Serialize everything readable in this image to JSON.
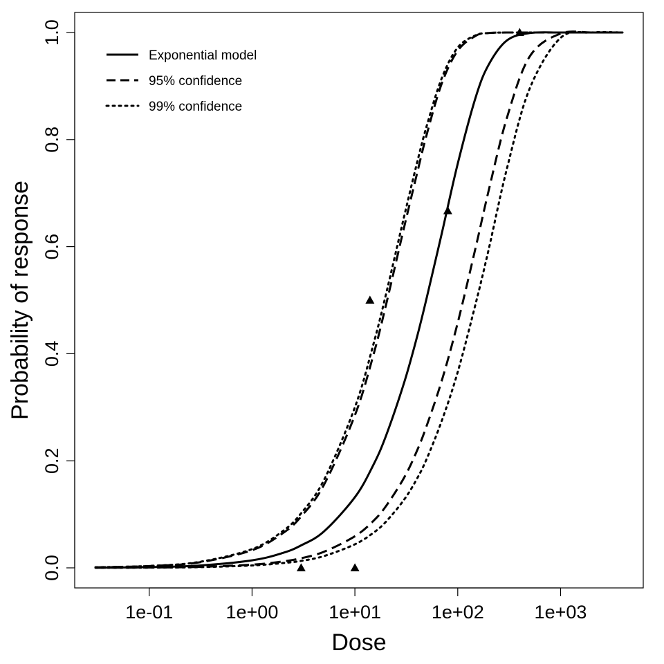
{
  "chart_data": {
    "type": "line",
    "title": "",
    "xlabel": "Dose",
    "ylabel": "Probability of response",
    "x_scale": "log",
    "xlim": [
      0.03,
      4000
    ],
    "ylim": [
      0,
      1
    ],
    "grid": false,
    "legend_position": "top-left",
    "x_ticks": [
      {
        "value": 0.1,
        "label": "1e-01"
      },
      {
        "value": 1,
        "label": "1e+00"
      },
      {
        "value": 10,
        "label": "1e+01"
      },
      {
        "value": 100,
        "label": "1e+02"
      },
      {
        "value": 1000,
        "label": "1e+03"
      }
    ],
    "y_ticks": [
      {
        "value": 0.0,
        "label": "0.0"
      },
      {
        "value": 0.2,
        "label": "0.2"
      },
      {
        "value": 0.4,
        "label": "0.4"
      },
      {
        "value": 0.6,
        "label": "0.6"
      },
      {
        "value": 0.8,
        "label": "0.8"
      },
      {
        "value": 1.0,
        "label": "1.0"
      }
    ],
    "series": [
      {
        "name": "Exponential model",
        "style": "solid",
        "x": [
          0.03,
          0.1,
          0.3,
          1,
          2,
          3,
          5,
          10,
          15,
          20,
          30,
          40,
          50,
          70,
          100,
          150,
          200,
          300,
          500,
          1000,
          2000,
          4000
        ],
        "y": [
          0.0004,
          0.0014,
          0.0042,
          0.014,
          0.028,
          0.042,
          0.068,
          0.132,
          0.191,
          0.246,
          0.345,
          0.43,
          0.505,
          0.625,
          0.755,
          0.88,
          0.94,
          0.985,
          0.999,
          1.0,
          1.0,
          1.0
        ]
      },
      {
        "name": "95% confidence",
        "style": "dashed",
        "x": [
          0.03,
          0.1,
          0.3,
          1,
          2,
          3,
          5,
          10,
          15,
          20,
          30,
          40,
          50,
          70,
          100,
          150,
          200,
          300,
          500,
          1000,
          2000,
          4000
        ],
        "y": [
          0.001,
          0.0034,
          0.01,
          0.033,
          0.065,
          0.096,
          0.155,
          0.285,
          0.395,
          0.49,
          0.635,
          0.735,
          0.81,
          0.905,
          0.966,
          0.994,
          0.999,
          1.0,
          1.0,
          1.0,
          1.0,
          1.0
        ]
      },
      {
        "name": "95% confidence",
        "style": "dashed",
        "x": [
          0.03,
          0.1,
          0.3,
          1,
          2,
          3,
          5,
          10,
          15,
          20,
          30,
          40,
          50,
          70,
          100,
          150,
          200,
          300,
          500,
          1000,
          2000,
          4000
        ],
        "y": [
          0.0002,
          0.0006,
          0.0018,
          0.006,
          0.012,
          0.018,
          0.03,
          0.059,
          0.087,
          0.115,
          0.168,
          0.218,
          0.266,
          0.35,
          0.458,
          0.6,
          0.705,
          0.84,
          0.955,
          0.998,
          1.0,
          1.0
        ]
      },
      {
        "name": "99% confidence",
        "style": "dotted",
        "x": [
          0.03,
          0.1,
          0.3,
          1,
          2,
          3,
          5,
          10,
          15,
          20,
          30,
          40,
          50,
          70,
          100,
          150,
          200,
          300,
          500,
          1000,
          2000,
          4000
        ],
        "y": [
          0.0001,
          0.0004,
          0.0013,
          0.0045,
          0.009,
          0.013,
          0.022,
          0.044,
          0.065,
          0.086,
          0.127,
          0.166,
          0.204,
          0.275,
          0.366,
          0.495,
          0.595,
          0.745,
          0.895,
          0.99,
          1.0,
          1.0
        ]
      },
      {
        "name": "99% confidence",
        "style": "dotted",
        "x": [
          0.03,
          0.1,
          0.3,
          1,
          2,
          3,
          5,
          10,
          15,
          20,
          30,
          40,
          50,
          70,
          100,
          150,
          200,
          300,
          500,
          1000,
          2000,
          4000
        ],
        "y": [
          0.0011,
          0.0036,
          0.0108,
          0.035,
          0.069,
          0.102,
          0.164,
          0.3,
          0.415,
          0.51,
          0.655,
          0.755,
          0.826,
          0.915,
          0.972,
          0.995,
          0.999,
          1.0,
          1.0,
          1.0,
          1.0,
          1.0
        ]
      }
    ],
    "observed_points": {
      "marker": "triangle",
      "x": [
        3,
        10,
        14,
        80,
        400
      ],
      "y": [
        0.0,
        0.0,
        0.5,
        0.667,
        1.0
      ]
    },
    "legend": [
      {
        "label": "Exponential model",
        "style": "solid"
      },
      {
        "label": "95% confidence",
        "style": "dashed"
      },
      {
        "label": "99% confidence",
        "style": "dotted"
      }
    ]
  }
}
